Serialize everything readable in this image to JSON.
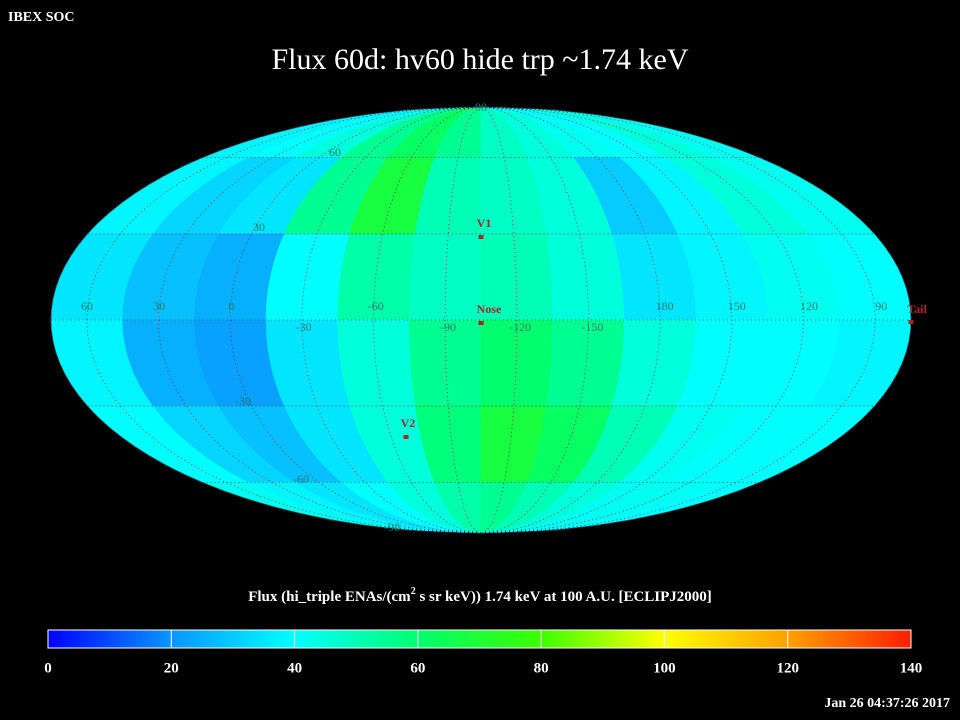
{
  "chart_data": {
    "type": "skymap",
    "header": "IBEX SOC",
    "title": "Flux   60d: hv60 hide trp ~1.74 keV",
    "colorbar_label": {
      "pre": "Flux (hi_triple ENAs/(cm",
      "sup": "2",
      "post": " s sr keV))  1.74 keV at 100 A.U. [ECLIPJ2000]"
    },
    "timestamp": "Jan 26 04:37:26 2017",
    "lon_labels": [
      60,
      30,
      0,
      -30,
      -60,
      -90,
      -120,
      -150,
      180,
      150,
      120,
      90
    ],
    "lat_labels": [
      90,
      60,
      30,
      -30,
      -60,
      -90
    ],
    "markers": [
      "V1",
      "Nose",
      "V2",
      "Tail"
    ],
    "clim": [
      0,
      140
    ],
    "cticks": [
      0,
      20,
      40,
      60,
      80,
      100,
      120,
      140
    ],
    "flux_grid": [
      [
        38,
        40,
        45,
        55,
        62,
        55,
        48,
        45,
        42,
        40,
        45,
        42
      ],
      [
        38,
        32,
        35,
        55,
        68,
        50,
        48,
        45,
        30,
        38,
        45,
        42
      ],
      [
        35,
        28,
        25,
        40,
        52,
        48,
        50,
        45,
        35,
        38,
        42,
        40
      ],
      [
        38,
        25,
        22,
        35,
        45,
        55,
        60,
        55,
        45,
        40,
        40,
        38
      ],
      [
        40,
        32,
        28,
        35,
        45,
        58,
        68,
        62,
        50,
        42,
        40,
        40
      ],
      [
        42,
        38,
        35,
        40,
        45,
        52,
        55,
        50,
        45,
        42,
        42,
        40
      ]
    ]
  }
}
